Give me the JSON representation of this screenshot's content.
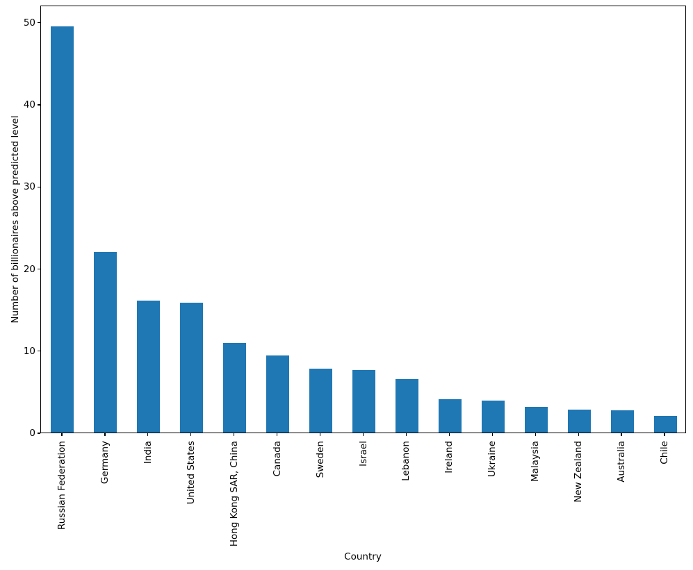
{
  "chart_data": {
    "type": "bar",
    "title": "",
    "xlabel": "Country",
    "ylabel": "Number of billionaires above predicted level",
    "categories": [
      "Russian Federation",
      "Germany",
      "India",
      "United States",
      "Hong Kong SAR, China",
      "Canada",
      "Sweden",
      "Israel",
      "Lebanon",
      "Ireland",
      "Ukraine",
      "Malaysia",
      "New Zealand",
      "Australia",
      "Chile"
    ],
    "values": [
      49.5,
      22.0,
      16.1,
      15.8,
      10.9,
      9.4,
      7.8,
      7.6,
      6.5,
      4.1,
      3.9,
      3.1,
      2.8,
      2.7,
      2.0
    ],
    "yticks": [
      0,
      10,
      20,
      30,
      40,
      50
    ],
    "ylim": [
      0,
      52.1
    ],
    "bar_color": "#1f77b4",
    "axis_color": "#000000",
    "grid": false,
    "legend": false,
    "x_tick_rotation": 90
  }
}
